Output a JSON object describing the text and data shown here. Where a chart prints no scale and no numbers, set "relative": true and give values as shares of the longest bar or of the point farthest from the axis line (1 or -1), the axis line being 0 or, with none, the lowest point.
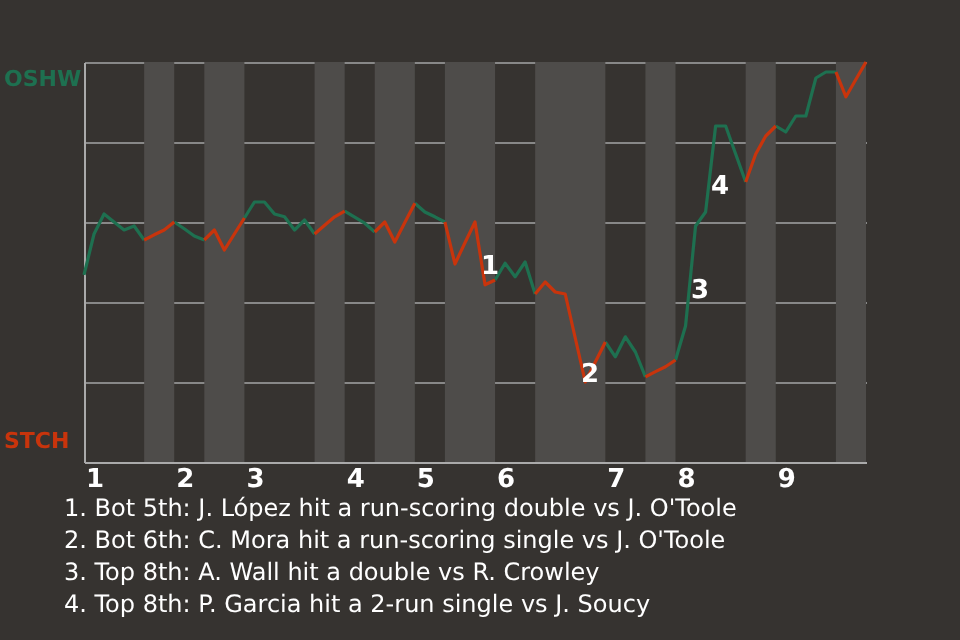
{
  "chart_data": {
    "type": "line",
    "relative": true,
    "categories": [
      null,
      "1",
      null,
      null,
      null,
      null,
      null,
      null,
      null,
      null,
      "2",
      null,
      null,
      null,
      null,
      null,
      null,
      "3",
      null,
      null,
      null,
      null,
      null,
      null,
      null,
      null,
      null,
      "4",
      null,
      null,
      null,
      null,
      null,
      null,
      "5",
      null,
      null,
      null,
      null,
      null,
      null,
      null,
      "6",
      null,
      null,
      null,
      null,
      null,
      null,
      null,
      null,
      null,
      null,
      "7",
      null,
      null,
      null,
      null,
      null,
      null,
      "8",
      null,
      null,
      null,
      null,
      null,
      null,
      null,
      null,
      null,
      "9",
      null,
      null,
      null,
      null,
      null,
      null,
      null,
      null
    ],
    "grid": "y",
    "marker": "none",
    "line_style": "solid",
    "series": [
      {
        "name": "OSHW",
        "color": "#1e7050",
        "values": [
          0.468,
          0.57,
          0.62,
          0.6,
          0.58,
          0.59,
          0.555,
          null,
          null,
          0.6,
          0.583,
          0.565,
          0.555,
          null,
          null,
          null,
          0.61,
          0.65,
          0.65,
          0.62,
          0.613,
          0.58,
          0.605,
          0.57,
          null,
          null,
          0.627,
          0.612,
          0.597,
          0.575,
          null,
          null,
          null,
          0.647,
          0.625,
          0.613,
          0.6,
          null,
          null,
          null,
          null,
          0.455,
          0.497,
          0.463,
          0.5,
          0.42,
          null,
          null,
          null,
          null,
          null,
          null,
          0.3,
          0.263,
          0.313,
          0.275,
          0.213,
          null,
          null,
          0.255,
          0.34,
          0.59,
          0.625,
          0.84,
          0.84,
          0.77,
          0.7,
          null,
          null,
          0.84,
          0.825,
          0.865,
          0.865,
          0.96,
          0.975,
          0.975,
          null,
          null,
          null
        ]
      },
      {
        "name": "STCH",
        "color": "#c8340c",
        "values": [
          null,
          null,
          null,
          null,
          null,
          null,
          0.555,
          0.568,
          0.58,
          0.6,
          null,
          null,
          0.555,
          0.58,
          0.53,
          0.57,
          0.61,
          null,
          null,
          null,
          null,
          null,
          null,
          0.57,
          0.592,
          0.613,
          0.627,
          null,
          null,
          0.575,
          0.6,
          0.55,
          0.599,
          0.647,
          null,
          null,
          0.6,
          0.495,
          0.548,
          0.6,
          0.443,
          0.455,
          null,
          null,
          null,
          0.42,
          0.45,
          0.425,
          0.42,
          0.31,
          0.2,
          0.25,
          0.3,
          null,
          null,
          null,
          0.213,
          0.226,
          0.238,
          0.255,
          null,
          null,
          null,
          null,
          null,
          null,
          0.7,
          0.77,
          0.815,
          0.84,
          null,
          null,
          null,
          null,
          null,
          0.975,
          0.913,
          0.957,
          1.0
        ]
      }
    ],
    "annotations": [
      "1",
      "2",
      "3",
      "4",
      "1. Bot 5th: J. López hit a run-scoring double vs J. O'Toole",
      "2. Bot 6th: C. Mora hit a run-scoring single vs J. O'Toole",
      "3. Top 8th: A. Wall hit a double vs R. Crowley",
      "4. Top 8th: P. Garcia hit a 2-run single vs J. Soucy"
    ]
  }
}
